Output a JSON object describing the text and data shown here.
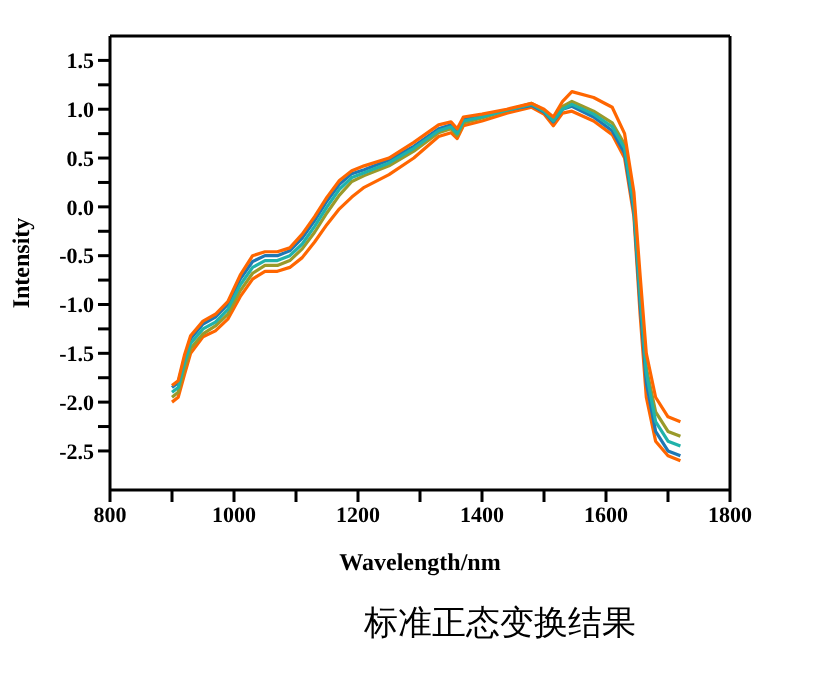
{
  "chart_data": {
    "type": "line",
    "xlabel": "Wavelength/nm",
    "ylabel": "Intensity",
    "annotations": [
      "标准正态变换结果"
    ],
    "marker": "none",
    "line_style": "solid",
    "xlim": [
      800,
      1800
    ],
    "ylim": [
      -2.9,
      1.75
    ],
    "xticks": [
      800,
      {
        "value": 900,
        "label": null
      },
      1000,
      {
        "value": 1100,
        "label": null
      },
      1200,
      {
        "value": 1300,
        "label": null
      },
      1400,
      {
        "value": 1500,
        "label": null
      },
      1600,
      {
        "value": 1700,
        "label": null
      },
      1800
    ],
    "yticks": [
      -2.5,
      {
        "value": -2.25,
        "label": null
      },
      {
        "value": -2,
        "label": "-2.0"
      },
      {
        "value": -1.75,
        "label": null
      },
      -1.5,
      {
        "value": -1.25,
        "label": null
      },
      {
        "value": -1,
        "label": "-1.0"
      },
      {
        "value": -0.75,
        "label": null
      },
      -0.5,
      {
        "value": -0.25,
        "label": null
      },
      {
        "value": 0,
        "label": "0.0"
      },
      {
        "value": 0.25,
        "label": null
      },
      0.5,
      {
        "value": 0.75,
        "label": null
      },
      {
        "value": 1,
        "label": "1.0"
      },
      {
        "value": 1.25,
        "label": null
      },
      1.5
    ],
    "x": [
      900,
      910,
      920,
      930,
      950,
      970,
      990,
      1010,
      1030,
      1050,
      1070,
      1090,
      1110,
      1130,
      1150,
      1170,
      1190,
      1210,
      1250,
      1290,
      1330,
      1350,
      1360,
      1370,
      1400,
      1440,
      1480,
      1500,
      1515,
      1530,
      1545,
      1580,
      1610,
      1630,
      1645,
      1655,
      1665,
      1680,
      1700,
      1720
    ],
    "series": [
      {
        "color": "#ff6600",
        "values": [
          -2.0,
          -1.95,
          -1.72,
          -1.5,
          -1.33,
          -1.27,
          -1.15,
          -0.92,
          -0.74,
          -0.66,
          -0.66,
          -0.62,
          -0.52,
          -0.36,
          -0.18,
          -0.02,
          0.1,
          0.2,
          0.33,
          0.5,
          0.72,
          0.76,
          0.7,
          0.83,
          0.88,
          0.96,
          1.02,
          0.95,
          0.83,
          0.96,
          0.98,
          0.88,
          0.74,
          0.5,
          -0.1,
          -1.1,
          -1.95,
          -2.4,
          -2.55,
          -2.6
        ]
      },
      {
        "color": "#1f77b4",
        "values": [
          -1.85,
          -1.8,
          -1.55,
          -1.35,
          -1.2,
          -1.13,
          -1.0,
          -0.74,
          -0.56,
          -0.5,
          -0.5,
          -0.45,
          -0.32,
          -0.14,
          0.06,
          0.23,
          0.34,
          0.38,
          0.48,
          0.62,
          0.8,
          0.84,
          0.77,
          0.9,
          0.93,
          0.99,
          1.04,
          0.97,
          0.87,
          1.0,
          1.03,
          0.92,
          0.78,
          0.55,
          -0.05,
          -1.0,
          -1.8,
          -2.3,
          -2.5,
          -2.55
        ]
      },
      {
        "color": "#9a9a2a",
        "values": [
          -1.95,
          -1.9,
          -1.65,
          -1.45,
          -1.3,
          -1.22,
          -1.1,
          -0.86,
          -0.68,
          -0.6,
          -0.6,
          -0.55,
          -0.43,
          -0.26,
          -0.06,
          0.12,
          0.26,
          0.32,
          0.42,
          0.57,
          0.76,
          0.8,
          0.73,
          0.86,
          0.91,
          0.99,
          1.06,
          0.99,
          0.9,
          1.03,
          1.08,
          0.98,
          0.86,
          0.64,
          0.05,
          -0.85,
          -1.65,
          -2.1,
          -2.3,
          -2.35
        ]
      },
      {
        "color": "#20b2aa",
        "values": [
          -1.9,
          -1.85,
          -1.6,
          -1.4,
          -1.25,
          -1.18,
          -1.05,
          -0.8,
          -0.62,
          -0.55,
          -0.55,
          -0.5,
          -0.38,
          -0.2,
          0.0,
          0.18,
          0.3,
          0.35,
          0.45,
          0.6,
          0.78,
          0.82,
          0.75,
          0.88,
          0.92,
          0.99,
          1.05,
          0.98,
          0.88,
          1.0,
          1.05,
          0.95,
          0.82,
          0.6,
          0.0,
          -0.9,
          -1.7,
          -2.2,
          -2.4,
          -2.45
        ]
      },
      {
        "color": "#ff6600",
        "values": [
          -1.83,
          -1.78,
          -1.52,
          -1.32,
          -1.17,
          -1.1,
          -0.97,
          -0.7,
          -0.5,
          -0.46,
          -0.46,
          -0.42,
          -0.28,
          -0.1,
          0.1,
          0.27,
          0.37,
          0.42,
          0.5,
          0.66,
          0.84,
          0.87,
          0.8,
          0.92,
          0.95,
          1.0,
          1.06,
          1.0,
          0.92,
          1.08,
          1.18,
          1.12,
          1.02,
          0.75,
          0.15,
          -0.7,
          -1.5,
          -1.95,
          -2.15,
          -2.2
        ]
      }
    ]
  }
}
